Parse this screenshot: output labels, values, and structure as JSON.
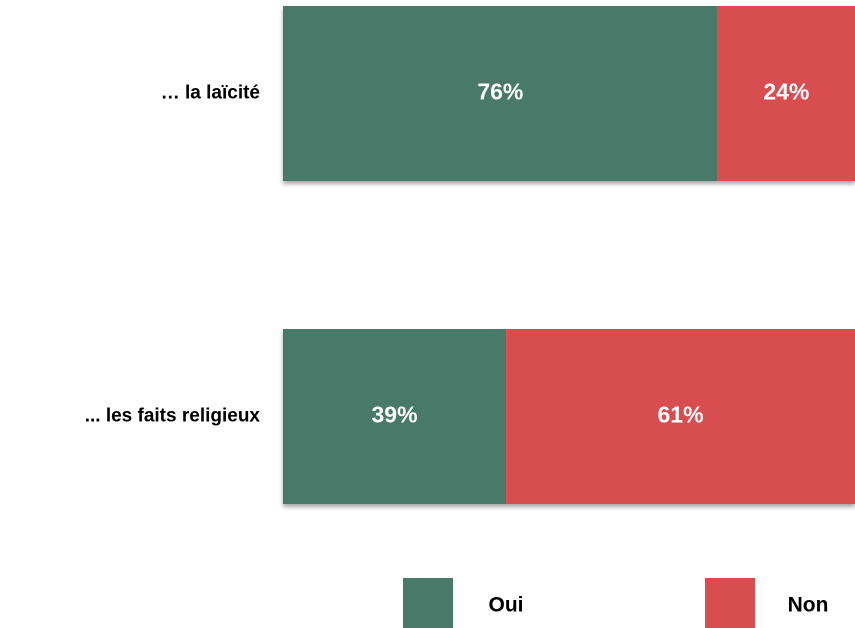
{
  "chart_data": {
    "type": "stacked-barh",
    "categories": [
      "… la laïcité",
      "... les faits religieux"
    ],
    "series": [
      {
        "name": "Oui",
        "color": "#4a7a69",
        "values": [
          76,
          39
        ],
        "value_labels": [
          "76%",
          "39%"
        ]
      },
      {
        "name": "Non",
        "color": "#d84e4f",
        "values": [
          24,
          61
        ],
        "value_labels": [
          "24%",
          "61%"
        ]
      }
    ],
    "xlim": [
      0,
      100
    ]
  }
}
